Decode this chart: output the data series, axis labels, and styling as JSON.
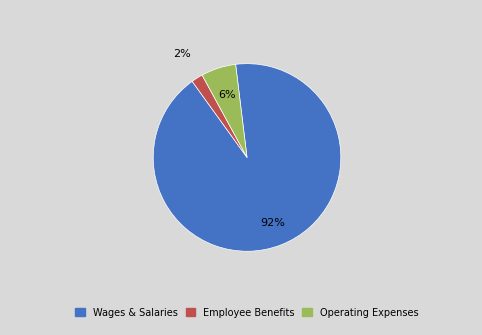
{
  "labels": [
    "Wages & Salaries",
    "Employee Benefits",
    "Operating Expenses"
  ],
  "values": [
    92,
    2,
    6
  ],
  "colors": [
    "#4472C4",
    "#C0504D",
    "#9BBB59"
  ],
  "background_color": "#d9d9d9",
  "text_color": "#000000",
  "startangle": 97,
  "legend_fontsize": 7,
  "pct_fontsize": 8,
  "pct_distance_large": 0.75,
  "pct_distance_small": 1.18
}
